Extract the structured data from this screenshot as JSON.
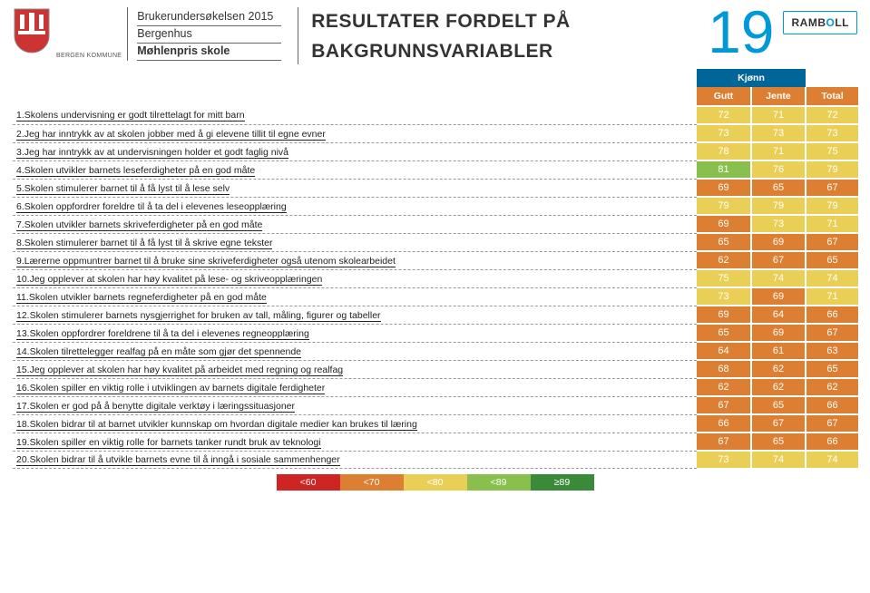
{
  "header": {
    "survey_title": "Brukerundersøkelsen 2015",
    "district": "Bergenhus",
    "school": "Møhlenpris skole",
    "kommune_label": "BERGEN KOMMUNE",
    "page_title_line1": "RESULTATER FORDELT PÅ",
    "page_title_line2": "BAKGRUNNSVARIABLER",
    "page_number": "19",
    "brand": "RAMBOLL"
  },
  "table": {
    "group_label": "Kjønn",
    "columns": [
      "Gutt",
      "Jente",
      "Total"
    ],
    "rows": [
      {
        "q": "1.Skolens undervisning er godt tilrettelagt for mitt barn",
        "v": [
          72,
          71,
          72
        ]
      },
      {
        "q": "2.Jeg har inntrykk av at skolen jobber med å gi elevene tillit til egne evner",
        "v": [
          73,
          73,
          73
        ]
      },
      {
        "q": "3.Jeg har inntrykk av at undervisningen holder et godt faglig nivå",
        "v": [
          78,
          71,
          75
        ]
      },
      {
        "q": "4.Skolen utvikler barnets leseferdigheter på en god måte",
        "v": [
          81,
          76,
          79
        ]
      },
      {
        "q": "5.Skolen stimulerer barnet til å få lyst til å lese selv",
        "v": [
          69,
          65,
          67
        ]
      },
      {
        "q": "6.Skolen oppfordrer foreldre til å ta del i elevenes leseopplæring",
        "v": [
          79,
          79,
          79
        ]
      },
      {
        "q": "7.Skolen utvikler barnets skriveferdigheter på en god måte",
        "v": [
          69,
          73,
          71
        ]
      },
      {
        "q": "8.Skolen stimulerer barnet til å få lyst til å skrive egne tekster",
        "v": [
          65,
          69,
          67
        ]
      },
      {
        "q": "9.Lærerne oppmuntrer barnet til å bruke sine skriveferdigheter også utenom skolearbeidet",
        "v": [
          62,
          67,
          65
        ]
      },
      {
        "q": "10.Jeg opplever at skolen har høy kvalitet på lese- og skriveopplæringen",
        "v": [
          75,
          74,
          74
        ]
      },
      {
        "q": "11.Skolen utvikler barnets regneferdigheter på en god måte",
        "v": [
          73,
          69,
          71
        ]
      },
      {
        "q": "12.Skolen stimulerer barnets nysgjerrighet for bruken av tall, måling, figurer og tabeller",
        "v": [
          69,
          64,
          66
        ]
      },
      {
        "q": "13.Skolen oppfordrer foreldrene til å ta del i elevenes regneopplæring",
        "v": [
          65,
          69,
          67
        ]
      },
      {
        "q": "14.Skolen tilrettelegger realfag på en måte som gjør det spennende",
        "v": [
          64,
          61,
          63
        ]
      },
      {
        "q": "15.Jeg opplever at skolen har høy kvalitet på arbeidet med regning og realfag",
        "v": [
          68,
          62,
          65
        ]
      },
      {
        "q": "16.Skolen spiller en viktig rolle i utviklingen av barnets digitale ferdigheter",
        "v": [
          62,
          62,
          62
        ]
      },
      {
        "q": "17.Skolen er god på å benytte digitale verktøy i læringssituasjoner",
        "v": [
          67,
          65,
          66
        ]
      },
      {
        "q": "18.Skolen bidrar til at barnet utvikler kunnskap om hvordan digitale medier kan brukes til læring",
        "v": [
          66,
          67,
          67
        ]
      },
      {
        "q": "19.Skolen spiller en viktig rolle for barnets tanker rundt bruk av teknologi",
        "v": [
          67,
          65,
          66
        ]
      },
      {
        "q": "20.Skolen bidrar til å utvikle barnets evne til å inngå i sosiale sammenhenger",
        "v": [
          73,
          74,
          74
        ]
      }
    ]
  },
  "legend": {
    "items": [
      {
        "label": "<60",
        "color": "#cf2424"
      },
      {
        "label": "<70",
        "color": "#dd7f32"
      },
      {
        "label": "<80",
        "color": "#e9cf56"
      },
      {
        "label": "<89",
        "color": "#89bf4d"
      },
      {
        "label": "≥89",
        "color": "#3a8a3a"
      }
    ]
  },
  "scale": {
    "breaks": [
      60,
      70,
      80,
      89
    ],
    "colors": [
      "#cf2424",
      "#dd7f32",
      "#e9cf56",
      "#89bf4d",
      "#3a8a3a"
    ]
  }
}
